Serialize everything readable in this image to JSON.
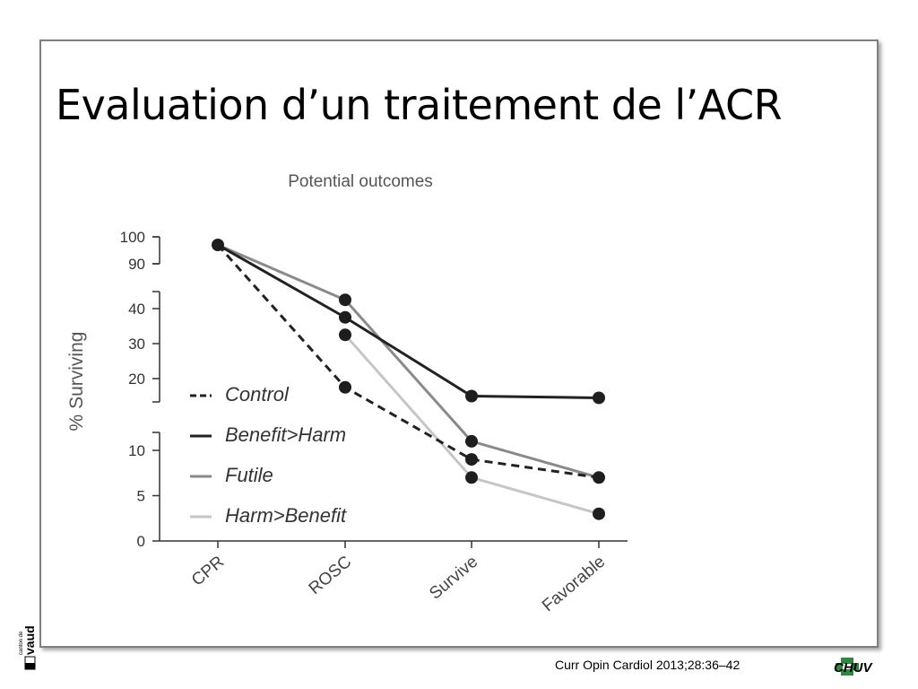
{
  "slide": {
    "title": "Evaluation d’un traitement de l’ACR",
    "citation": "Curr Opin Cardiol 2013;28:36–42"
  },
  "logos": {
    "left": "canton de vaud",
    "right": "CHUV"
  },
  "chart_data": {
    "type": "line",
    "title": "Potential outcomes",
    "ylabel": "% Surviving",
    "xlabel": "",
    "categories": [
      "CPR",
      "ROSC",
      "Survive",
      "Favorable"
    ],
    "axis_breaks": true,
    "y_segments": [
      {
        "range": [
          90,
          100
        ],
        "ticks": [
          100,
          90
        ]
      },
      {
        "range": [
          15,
          46
        ],
        "ticks": [
          40,
          30,
          20
        ]
      },
      {
        "range": [
          0,
          12
        ],
        "ticks": [
          10,
          5,
          0
        ]
      }
    ],
    "legend_position": "center-left",
    "series": [
      {
        "name": "Control",
        "color": "#222222",
        "dash": "dashed",
        "values": [
          97,
          17.5,
          9,
          7
        ]
      },
      {
        "name": "Benefit>Harm",
        "color": "#222222",
        "dash": "solid",
        "values": [
          97,
          37.5,
          15,
          14.5
        ]
      },
      {
        "name": "Futile",
        "color": "#8a8a8a",
        "dash": "solid",
        "values": [
          97,
          42.5,
          11,
          7
        ]
      },
      {
        "name": "Harm>Benefit",
        "color": "#c6c6c6",
        "dash": "solid",
        "values": [
          null,
          32.5,
          7,
          3
        ]
      }
    ]
  }
}
